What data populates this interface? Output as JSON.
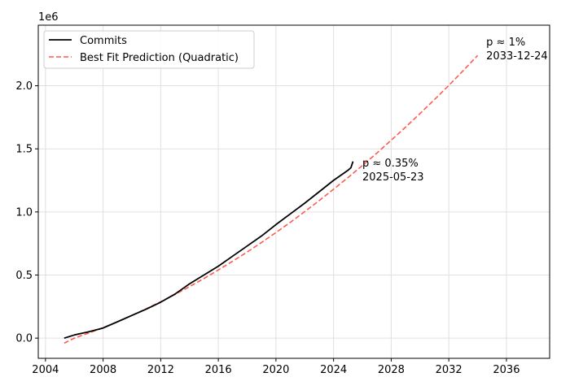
{
  "chart_data": {
    "type": "line",
    "x_type": "year",
    "xlim": [
      2003.5,
      2039.0
    ],
    "ylim": [
      -160000,
      2480000
    ],
    "y_scale_label": "1e6",
    "x_ticks": [
      2004,
      2008,
      2012,
      2016,
      2020,
      2024,
      2028,
      2032,
      2036
    ],
    "y_ticks": [
      0,
      500000,
      1000000,
      1500000,
      2000000
    ],
    "y_tick_labels": [
      "0.0",
      "0.5",
      "1.0",
      "1.5",
      "2.0"
    ],
    "grid": true,
    "legend_position": "top-left",
    "series": [
      {
        "name": "Commits",
        "color": "#000000",
        "style": "solid",
        "x": [
          2005.3,
          2006,
          2007,
          2008,
          2009,
          2010,
          2011,
          2012,
          2013,
          2014,
          2015,
          2016,
          2017,
          2018,
          2019,
          2020,
          2021,
          2022,
          2023,
          2024,
          2025,
          2025.2,
          2025.35
        ],
        "y": [
          0,
          25000,
          50000,
          80000,
          130000,
          180000,
          230000,
          285000,
          350000,
          430000,
          500000,
          570000,
          650000,
          730000,
          810000,
          900000,
          985000,
          1070000,
          1160000,
          1250000,
          1330000,
          1350000,
          1400000
        ]
      },
      {
        "name": "Best Fit Prediction (Quadratic)",
        "color": "#ff5a4f",
        "style": "dashed",
        "x": [
          2005.3,
          2006,
          2007,
          2008,
          2009,
          2010,
          2011,
          2012,
          2013,
          2014,
          2015,
          2016,
          2017,
          2018,
          2019,
          2020,
          2021,
          2022,
          2023,
          2024,
          2025,
          2026,
          2027,
          2028,
          2029,
          2030,
          2031,
          2032,
          2033,
          2034
        ],
        "y": [
          -40000,
          0,
          40000,
          83000,
          130000,
          180000,
          233000,
          288000,
          347000,
          408000,
          472000,
          540000,
          610000,
          682000,
          758000,
          837000,
          918000,
          1003000,
          1090000,
          1180000,
          1272000,
          1368000,
          1466000,
          1568000,
          1672000,
          1780000,
          1890000,
          2003000,
          2120000,
          2240000
        ]
      }
    ],
    "annotations": [
      {
        "line1": "p ≈ 0.35%",
        "line2": "2025-05-23",
        "x": 2026.0,
        "y": 1360000
      },
      {
        "line1": "p ≈ 1%",
        "line2": "2033-12-24",
        "x": 2034.6,
        "y": 2320000
      }
    ]
  }
}
